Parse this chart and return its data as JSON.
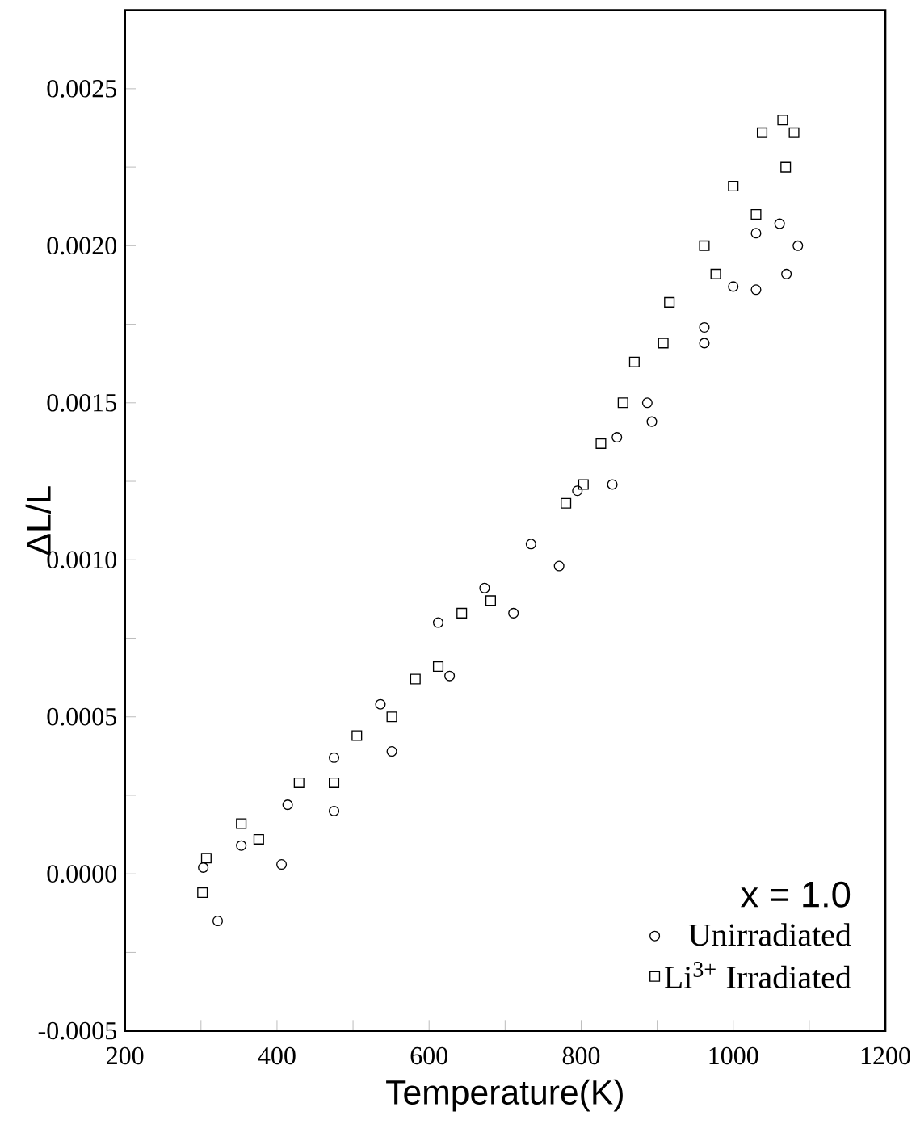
{
  "chart_data": {
    "type": "scatter",
    "xlabel": "Temperature(K)",
    "ylabel": "ΔL/L",
    "legend_title": "x = 1.0",
    "xlim": [
      200,
      1200
    ],
    "ylim": [
      -0.0005,
      0.00275
    ],
    "xticks": [
      200,
      {
        "value": 300,
        "label": null
      },
      400,
      {
        "value": 500,
        "label": null
      },
      600,
      {
        "value": 700,
        "label": null
      },
      800,
      {
        "value": 900,
        "label": null
      },
      1000,
      {
        "value": 1100,
        "label": null
      },
      1200
    ],
    "yticks": [
      {
        "value": -0.0005,
        "label": "-0.0005"
      },
      {
        "value": -0.00025,
        "label": null
      },
      {
        "value": 0,
        "label": "0.0000"
      },
      {
        "value": 0.00025,
        "label": null
      },
      {
        "value": 0.0005,
        "label": "0.0005"
      },
      {
        "value": 0.00075,
        "label": null
      },
      {
        "value": 0.001,
        "label": "0.0010"
      },
      {
        "value": 0.00125,
        "label": null
      },
      {
        "value": 0.0015,
        "label": "0.0015"
      },
      {
        "value": 0.00175,
        "label": null
      },
      {
        "value": 0.002,
        "label": "0.0020"
      },
      {
        "value": 0.00225,
        "label": null
      },
      {
        "value": 0.0025,
        "label": "0.0025"
      }
    ],
    "legend": "bottom right",
    "grid": false,
    "series": [
      {
        "name": "Unirradiated",
        "color": "#000000",
        "marker": "circle",
        "x": [
          322,
          406,
          475,
          551,
          627,
          711,
          771,
          841,
          893,
          962,
          1030,
          1070,
          1085,
          1061,
          1030,
          1000,
          962,
          887,
          847,
          795,
          734,
          673,
          612,
          536,
          475,
          414,
          353,
          303
        ],
        "values": [
          -0.00015,
          3e-05,
          0.0002,
          0.00039,
          0.00063,
          0.00083,
          0.00098,
          0.00124,
          0.00144,
          0.00169,
          0.00186,
          0.00191,
          0.002,
          0.00207,
          0.00204,
          0.00187,
          0.00174,
          0.0015,
          0.00139,
          0.00122,
          0.00105,
          0.00091,
          0.0008,
          0.00054,
          0.00037,
          0.00022,
          9e-05,
          2e-05
        ]
      },
      {
        "name": "Li$^{3+}$ Irradiated",
        "color": "#000000",
        "marker": "square",
        "x": [
          302,
          376,
          475,
          551,
          612,
          681,
          803,
          855,
          908,
          977,
          1030,
          1069,
          1080,
          1065,
          1038,
          1000,
          962,
          916,
          870,
          826,
          780,
          643,
          582,
          505,
          429,
          353,
          307
        ],
        "values": [
          -6e-05,
          0.00011,
          0.00029,
          0.0005,
          0.00066,
          0.00087,
          0.00124,
          0.0015,
          0.00169,
          0.00191,
          0.0021,
          0.00225,
          0.00236,
          0.0024,
          0.00236,
          0.00219,
          0.002,
          0.00182,
          0.00163,
          0.00137,
          0.00118,
          0.00083,
          0.00062,
          0.00044,
          0.00029,
          0.00016,
          5e-05
        ]
      }
    ]
  }
}
